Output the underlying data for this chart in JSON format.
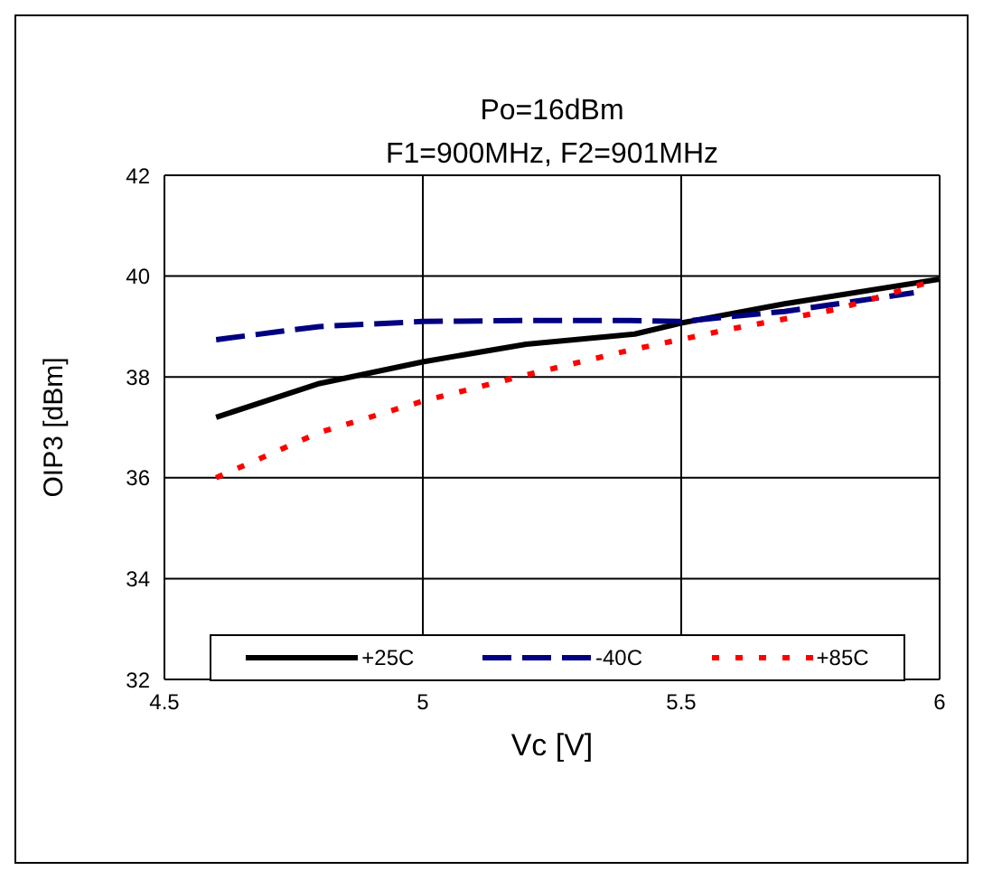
{
  "chart_data": {
    "type": "line",
    "title": "Po=16dBm",
    "subtitle": "F1=900MHz, F2=901MHz",
    "xlabel": "Vc [V]",
    "ylabel": "OIP3 [dBm]",
    "xlim": [
      4.5,
      6
    ],
    "xticks": [
      4.5,
      5,
      5.5,
      6
    ],
    "ylim": [
      32,
      42
    ],
    "yticks": [
      32,
      34,
      36,
      38,
      40,
      42
    ],
    "grid": true,
    "legend": "bottom",
    "marker": "none",
    "series": [
      {
        "name": "+25C",
        "color": "#000000",
        "line_style": "solid",
        "x": [
          4.6,
          4.8,
          5.0,
          5.2,
          5.41,
          5.5,
          5.7,
          6.0
        ],
        "values": [
          37.2,
          37.87,
          38.3,
          38.65,
          38.85,
          39.07,
          39.45,
          39.94
        ]
      },
      {
        "name": "-40C",
        "color": "#000080",
        "line_style": "dashed",
        "x": [
          4.6,
          4.8,
          5.0,
          5.2,
          5.4,
          5.5,
          5.7,
          5.95
        ],
        "values": [
          38.74,
          39.0,
          39.1,
          39.12,
          39.12,
          39.1,
          39.3,
          39.67
        ]
      },
      {
        "name": "+85C",
        "color": "#ff0000",
        "line_style": "dotted",
        "x": [
          4.6,
          4.8,
          5.0,
          5.2,
          5.4,
          5.6,
          5.8,
          6.0
        ],
        "values": [
          36.0,
          36.9,
          37.52,
          38.04,
          38.53,
          38.96,
          39.34,
          39.94
        ]
      }
    ]
  }
}
